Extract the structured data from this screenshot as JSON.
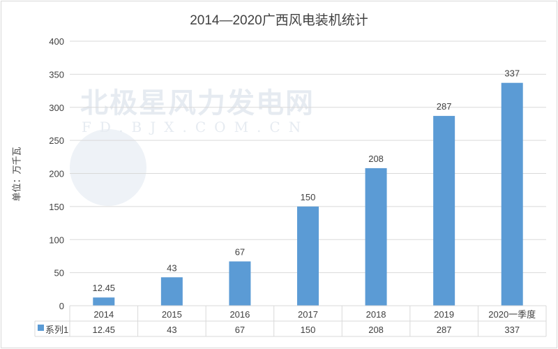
{
  "chart_data": {
    "type": "bar",
    "title": "2014—2020广西风电装机统计",
    "ylabel": "单位：万千瓦",
    "xlabel": "",
    "categories": [
      "2014",
      "2015",
      "2016",
      "2017",
      "2018",
      "2019",
      "2020一季度"
    ],
    "series": [
      {
        "name": "系列1",
        "values": [
          12.45,
          43,
          67,
          150,
          208,
          287,
          337
        ],
        "labels": [
          "12.45",
          "43",
          "67",
          "150",
          "208",
          "287",
          "337"
        ]
      }
    ],
    "ylim": [
      0,
      400
    ],
    "yticks": [
      0,
      50,
      100,
      150,
      200,
      250,
      300,
      350,
      400
    ],
    "grid": true,
    "legend": "data-table",
    "data_table": true,
    "bar_color": "#5b9bd5"
  },
  "watermark": {
    "text": "北极星风力发电网",
    "url_text": "FD.BJX.COM.CN"
  }
}
